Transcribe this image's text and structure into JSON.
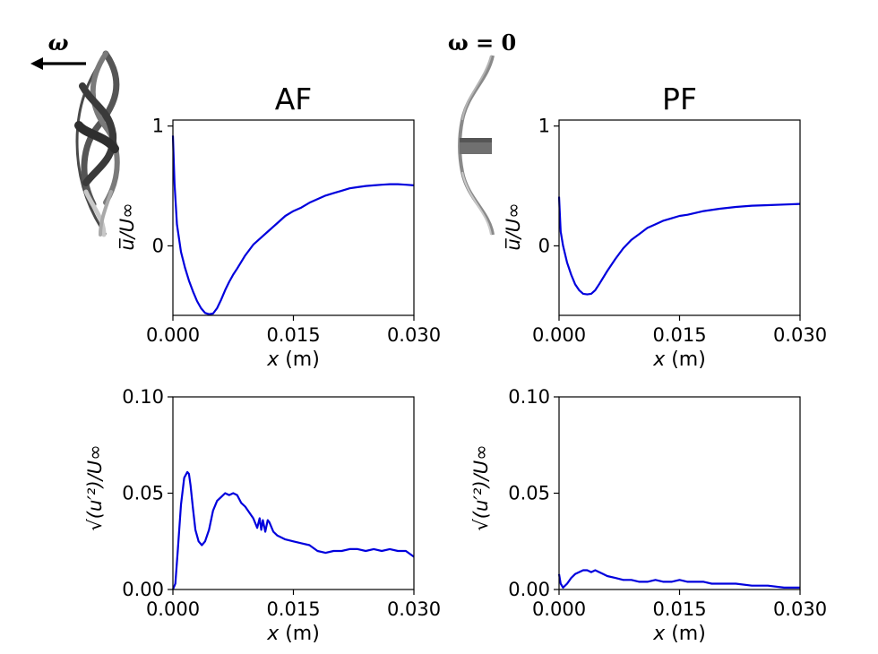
{
  "figure": {
    "left_rotation_label": "ω",
    "right_rotation_label": "ω = 0",
    "colors": {
      "series": "#0000dd",
      "axes": "#000000",
      "blade_dark": "#3a3a3a",
      "blade_light": "#cfcfcf"
    },
    "icons": [
      "rotating-rotor-icon",
      "rotation-arrow-icon",
      "static-blade-icon"
    ]
  },
  "chart_data": [
    {
      "id": "af_mean",
      "type": "line",
      "title": "AF",
      "xlabel": "x (m)",
      "ylabel": "u̅/U∞",
      "xlim": [
        0,
        0.03
      ],
      "ylim": [
        -0.58,
        1.05
      ],
      "xticks": [
        0,
        0.015,
        0.03
      ],
      "xtick_labels": [
        "0.000",
        "0.015",
        "0.030"
      ],
      "yticks": [
        0,
        1
      ],
      "ytick_labels": [
        "0",
        "1"
      ],
      "grid": false,
      "series": [
        {
          "x": [
            0,
            0.0002,
            0.0005,
            0.001,
            0.0015,
            0.002,
            0.0025,
            0.003,
            0.0035,
            0.004,
            0.0045,
            0.005,
            0.0055,
            0.006,
            0.0065,
            0.007,
            0.0075,
            0.008,
            0.009,
            0.01,
            0.011,
            0.012,
            0.013,
            0.014,
            0.015,
            0.016,
            0.017,
            0.018,
            0.019,
            0.02,
            0.021,
            0.022,
            0.023,
            0.024,
            0.025,
            0.026,
            0.027,
            0.028,
            0.029,
            0.03
          ],
          "y": [
            0.92,
            0.52,
            0.18,
            -0.05,
            -0.18,
            -0.29,
            -0.38,
            -0.46,
            -0.52,
            -0.56,
            -0.57,
            -0.565,
            -0.52,
            -0.45,
            -0.37,
            -0.3,
            -0.24,
            -0.19,
            -0.08,
            0.01,
            0.07,
            0.13,
            0.19,
            0.25,
            0.29,
            0.32,
            0.36,
            0.39,
            0.42,
            0.44,
            0.46,
            0.48,
            0.49,
            0.5,
            0.505,
            0.51,
            0.515,
            0.515,
            0.51,
            0.505
          ]
        }
      ]
    },
    {
      "id": "pf_mean",
      "type": "line",
      "title": "PF",
      "xlabel": "x (m)",
      "ylabel": "u̅/U∞",
      "xlim": [
        0,
        0.03
      ],
      "ylim": [
        -0.58,
        1.05
      ],
      "xticks": [
        0,
        0.015,
        0.03
      ],
      "xtick_labels": [
        "0.000",
        "0.015",
        "0.030"
      ],
      "yticks": [
        0,
        1
      ],
      "ytick_labels": [
        "0",
        "1"
      ],
      "grid": false,
      "series": [
        {
          "x": [
            0,
            0.0002,
            0.0005,
            0.001,
            0.0015,
            0.002,
            0.0025,
            0.003,
            0.0035,
            0.004,
            0.0045,
            0.005,
            0.006,
            0.007,
            0.008,
            0.009,
            0.01,
            0.011,
            0.012,
            0.013,
            0.014,
            0.015,
            0.016,
            0.018,
            0.02,
            0.022,
            0.024,
            0.026,
            0.028,
            0.03
          ],
          "y": [
            0.41,
            0.12,
            0.0,
            -0.14,
            -0.24,
            -0.32,
            -0.37,
            -0.4,
            -0.405,
            -0.4,
            -0.37,
            -0.32,
            -0.21,
            -0.11,
            -0.02,
            0.05,
            0.1,
            0.15,
            0.18,
            0.21,
            0.23,
            0.25,
            0.26,
            0.29,
            0.31,
            0.325,
            0.335,
            0.34,
            0.345,
            0.35
          ]
        }
      ]
    },
    {
      "id": "af_rms",
      "type": "line",
      "xlabel": "x (m)",
      "ylabel": "√(u′²)/U∞",
      "xlim": [
        0,
        0.03
      ],
      "ylim": [
        0,
        0.1
      ],
      "xticks": [
        0,
        0.015,
        0.03
      ],
      "xtick_labels": [
        "0.000",
        "0.015",
        "0.030"
      ],
      "yticks": [
        0,
        0.05,
        0.1
      ],
      "ytick_labels": [
        "0.00",
        "0.05",
        "0.10"
      ],
      "grid": false,
      "series": [
        {
          "x": [
            0,
            0.0003,
            0.0006,
            0.001,
            0.0014,
            0.0018,
            0.002,
            0.0022,
            0.0025,
            0.0028,
            0.0032,
            0.0036,
            0.004,
            0.0045,
            0.005,
            0.0055,
            0.006,
            0.0065,
            0.007,
            0.0075,
            0.008,
            0.0085,
            0.009,
            0.0095,
            0.01,
            0.0105,
            0.0108,
            0.011,
            0.0112,
            0.0115,
            0.0118,
            0.012,
            0.0125,
            0.013,
            0.014,
            0.015,
            0.016,
            0.017,
            0.018,
            0.019,
            0.02,
            0.021,
            0.022,
            0.023,
            0.024,
            0.025,
            0.026,
            0.027,
            0.028,
            0.029,
            0.03
          ],
          "y": [
            0.0,
            0.003,
            0.02,
            0.044,
            0.058,
            0.061,
            0.06,
            0.054,
            0.042,
            0.031,
            0.025,
            0.023,
            0.025,
            0.031,
            0.041,
            0.046,
            0.048,
            0.05,
            0.049,
            0.05,
            0.049,
            0.045,
            0.043,
            0.04,
            0.037,
            0.032,
            0.037,
            0.031,
            0.036,
            0.03,
            0.036,
            0.035,
            0.03,
            0.028,
            0.026,
            0.025,
            0.024,
            0.023,
            0.02,
            0.019,
            0.02,
            0.02,
            0.021,
            0.021,
            0.02,
            0.021,
            0.02,
            0.021,
            0.02,
            0.02,
            0.017
          ]
        }
      ]
    },
    {
      "id": "pf_rms",
      "type": "line",
      "xlabel": "x (m)",
      "ylabel": "√(u′²)/U∞",
      "xlim": [
        0,
        0.03
      ],
      "ylim": [
        0,
        0.1
      ],
      "xticks": [
        0,
        0.015,
        0.03
      ],
      "xtick_labels": [
        "0.000",
        "0.015",
        "0.030"
      ],
      "yticks": [
        0,
        0.05,
        0.1
      ],
      "ytick_labels": [
        "0.00",
        "0.05",
        "0.10"
      ],
      "grid": false,
      "series": [
        {
          "x": [
            0,
            0.0002,
            0.0005,
            0.001,
            0.0015,
            0.002,
            0.0025,
            0.003,
            0.0035,
            0.004,
            0.0045,
            0.005,
            0.0055,
            0.006,
            0.007,
            0.008,
            0.009,
            0.01,
            0.011,
            0.012,
            0.013,
            0.014,
            0.015,
            0.016,
            0.017,
            0.018,
            0.019,
            0.02,
            0.022,
            0.024,
            0.026,
            0.028,
            0.03
          ],
          "y": [
            0.008,
            0.003,
            0.001,
            0.003,
            0.006,
            0.008,
            0.009,
            0.01,
            0.01,
            0.009,
            0.01,
            0.009,
            0.008,
            0.007,
            0.006,
            0.005,
            0.005,
            0.004,
            0.004,
            0.005,
            0.004,
            0.004,
            0.005,
            0.004,
            0.004,
            0.004,
            0.003,
            0.003,
            0.003,
            0.002,
            0.002,
            0.001,
            0.001
          ]
        }
      ]
    }
  ]
}
